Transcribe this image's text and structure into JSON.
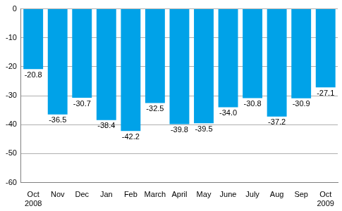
{
  "chart_data": {
    "type": "bar",
    "categories": [
      [
        "Oct",
        "2008"
      ],
      "Nov",
      "Dec",
      "Jan",
      "Feb",
      "March",
      "April",
      "May",
      "June",
      "July",
      "Aug",
      "Sep",
      [
        "Oct",
        "2009"
      ]
    ],
    "values": [
      -20.8,
      -36.5,
      -30.7,
      -38.4,
      -42.2,
      -32.5,
      -39.8,
      -39.5,
      -34.0,
      -30.8,
      -37.2,
      -30.9,
      -27.1
    ],
    "value_labels": [
      "-20.8",
      "-36.5",
      "-30.7",
      "-38.4",
      "-42.2",
      "-32.5",
      "-39.8",
      "-39.5",
      "-34.0",
      "-30.8",
      "-37.2",
      "-30.9",
      "-27.1"
    ],
    "color": "#00a2e8",
    "ylim": [
      -60,
      0
    ],
    "yticks": [
      -60,
      -50,
      -40,
      -30,
      -20,
      -10,
      0
    ],
    "grid": true,
    "data_labels": true
  }
}
